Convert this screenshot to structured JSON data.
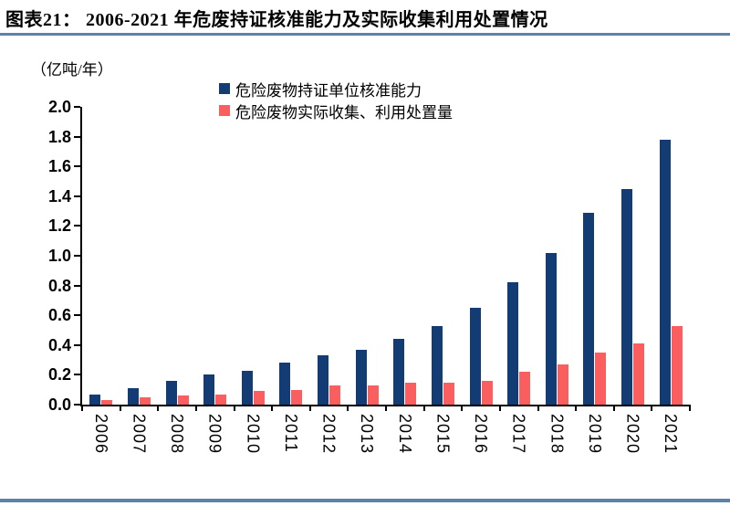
{
  "header": {
    "title": "图表21： 2006-2021 年危废持证核准能力及实际收集利用处置情况"
  },
  "colors": {
    "accent_rule": "#5E81A8",
    "axis": "#000000",
    "series_approved": "#143C74",
    "series_actual": "#FB5E5E"
  },
  "chart_data": {
    "type": "bar",
    "title": "2006-2021 年危废持证核准能力及实际收集利用处置情况",
    "unit_label": "（亿吨/年）",
    "categories": [
      "2006",
      "2007",
      "2008",
      "2009",
      "2010",
      "2011",
      "2012",
      "2013",
      "2014",
      "2015",
      "2016",
      "2017",
      "2018",
      "2019",
      "2020",
      "2021"
    ],
    "series": [
      {
        "name": "危险废物持证单位核准能力",
        "color": "#143C74",
        "values": [
          0.07,
          0.11,
          0.16,
          0.2,
          0.23,
          0.28,
          0.33,
          0.37,
          0.44,
          0.53,
          0.65,
          0.82,
          1.02,
          1.29,
          1.45,
          1.78
        ]
      },
      {
        "name": "危险废物实际收集、利用处置量",
        "color": "#FB5E5E",
        "values": [
          0.03,
          0.05,
          0.06,
          0.07,
          0.09,
          0.1,
          0.13,
          0.13,
          0.15,
          0.15,
          0.16,
          0.22,
          0.27,
          0.35,
          0.41,
          0.53
        ]
      }
    ],
    "ylim": [
      0,
      2.0
    ],
    "ytick_labels": [
      "0.0",
      "0.2",
      "0.4",
      "0.6",
      "0.8",
      "1.0",
      "1.2",
      "1.4",
      "1.6",
      "1.8",
      "2.0"
    ],
    "xlabel": "",
    "ylabel": "",
    "grid": false,
    "legend_position": "top-center",
    "x_label_rotation_deg": 90
  }
}
